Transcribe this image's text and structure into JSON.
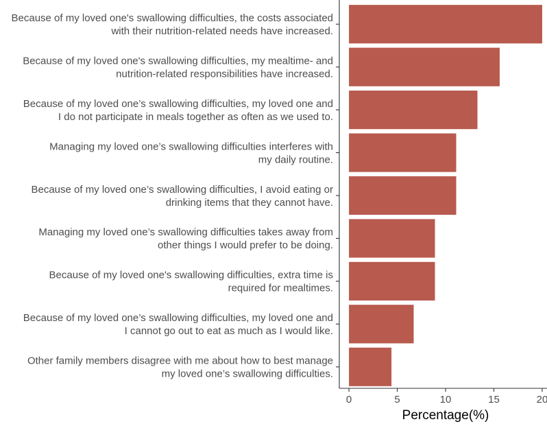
{
  "chart_data": {
    "type": "bar",
    "orientation": "horizontal",
    "categories": [
      [
        "Because of my loved one's swallowing difficulties, the costs associated",
        "with their nutrition-related needs have increased."
      ],
      [
        "Because of my loved one's swallowing difficulties, my mealtime- and",
        "nutrition-related responsibilities have increased."
      ],
      [
        "Because of my loved one’s swallowing difficulties, my loved one and",
        "I do not participate in meals together as often as we used to."
      ],
      [
        "Managing my loved one’s swallowing difficulties interferes with",
        "my daily routine."
      ],
      [
        "Because of my loved one’s swallowing difficulties, I avoid eating or",
        "drinking items that they cannot have."
      ],
      [
        "Managing my loved one’s swallowing difficulties takes away from",
        "other things I would prefer to be doing."
      ],
      [
        "Because of my loved one's swallowing difficulties, extra time is",
        "required for mealtimes."
      ],
      [
        "Because of my loved one’s swallowing difficulties, my loved one and",
        "I cannot go out to eat as much as I would like."
      ],
      [
        "Other family members disagree with me about how to best manage",
        "my loved one’s swallowing difficulties."
      ]
    ],
    "values": [
      20.0,
      15.6,
      13.3,
      11.1,
      11.1,
      8.9,
      8.9,
      6.7,
      4.4
    ],
    "xlabel": "Percentage(%)",
    "xlim": [
      -1,
      20.5
    ],
    "xticks": [
      0,
      5,
      10,
      15,
      20
    ],
    "bar_color": "#b85a4e",
    "grid": false,
    "legend": "none"
  }
}
